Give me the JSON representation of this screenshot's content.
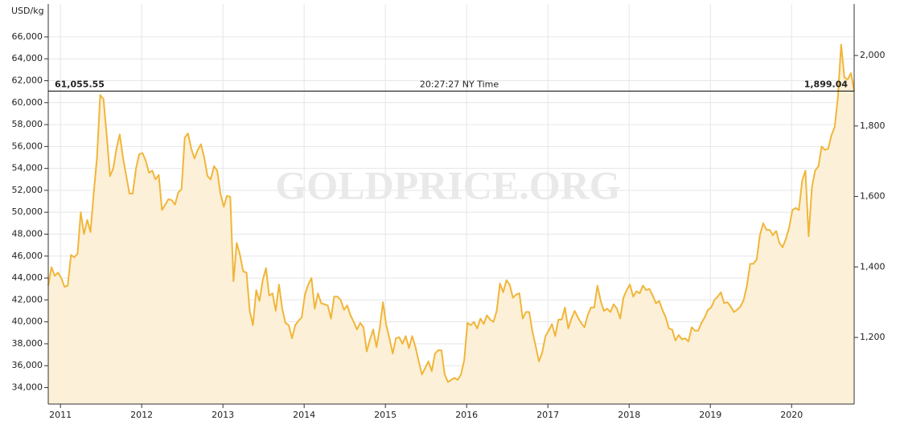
{
  "chart_data": {
    "type": "line",
    "y_label": "USD/kg",
    "watermark": "GOLDPRICE.ORG",
    "color": "#f0b63a",
    "fill": "#fdf0d8",
    "xlim": [
      2010.85,
      2020.77
    ],
    "xticks": [
      2011,
      2012,
      2013,
      2014,
      2015,
      2016,
      2017,
      2018,
      2019,
      2020
    ],
    "ylim": [
      32500,
      69000
    ],
    "yticks": [
      {
        "value": 34000,
        "label": "34,000"
      },
      {
        "value": 36000,
        "label": "36,000"
      },
      {
        "value": 38000,
        "label": "38,000"
      },
      {
        "value": 40000,
        "label": "40,000"
      },
      {
        "value": 42000,
        "label": "42,000"
      },
      {
        "value": 44000,
        "label": "44,000"
      },
      {
        "value": 46000,
        "label": "46,000"
      },
      {
        "value": 48000,
        "label": "48,000"
      },
      {
        "value": 50000,
        "label": "50,000"
      },
      {
        "value": 52000,
        "label": "52,000"
      },
      {
        "value": 54000,
        "label": "54,000"
      },
      {
        "value": 56000,
        "label": "56,000"
      },
      {
        "value": 58000,
        "label": "58,000"
      },
      {
        "value": 60000,
        "label": "60,000"
      },
      {
        "value": 62000,
        "label": "62,000"
      },
      {
        "value": 64000,
        "label": "64,000"
      },
      {
        "value": 66000,
        "label": "66,000"
      }
    ],
    "y2lim": [
      1011,
      2146
    ],
    "y2ticks": [
      {
        "value": 1200,
        "label": "1,200"
      },
      {
        "value": 1400,
        "label": "1,400"
      },
      {
        "value": 1600,
        "label": "1,600"
      },
      {
        "value": 1800,
        "label": "1,800"
      },
      {
        "value": 2000,
        "label": "2,000"
      }
    ],
    "grid": true,
    "crosshair": {
      "value": 61055.55,
      "label": "61,055.55",
      "time": "20:27:27 NY Time",
      "value2": {
        "value": 1899.04,
        "label": "1,899.04"
      }
    },
    "x": [
      2010.85,
      2010.89,
      2010.93,
      2010.97,
      2011.01,
      2011.05,
      2011.09,
      2011.13,
      2011.17,
      2011.21,
      2011.25,
      2011.29,
      2011.33,
      2011.37,
      2011.41,
      2011.45,
      2011.49,
      2011.53,
      2011.57,
      2011.61,
      2011.65,
      2011.69,
      2011.73,
      2011.77,
      2011.81,
      2011.85,
      2011.89,
      2011.93,
      2011.97,
      2012.01,
      2012.05,
      2012.09,
      2012.13,
      2012.17,
      2012.21,
      2012.25,
      2012.29,
      2012.33,
      2012.37,
      2012.41,
      2012.45,
      2012.49,
      2012.53,
      2012.57,
      2012.61,
      2012.65,
      2012.69,
      2012.73,
      2012.77,
      2012.81,
      2012.85,
      2012.89,
      2012.93,
      2012.97,
      2013.01,
      2013.05,
      2013.09,
      2013.13,
      2013.17,
      2013.21,
      2013.25,
      2013.29,
      2013.33,
      2013.37,
      2013.41,
      2013.45,
      2013.49,
      2013.53,
      2013.57,
      2013.61,
      2013.65,
      2013.69,
      2013.73,
      2013.77,
      2013.81,
      2013.85,
      2013.89,
      2013.93,
      2013.97,
      2014.01,
      2014.05,
      2014.09,
      2014.13,
      2014.17,
      2014.21,
      2014.25,
      2014.29,
      2014.33,
      2014.37,
      2014.41,
      2014.45,
      2014.49,
      2014.53,
      2014.57,
      2014.61,
      2014.65,
      2014.69,
      2014.73,
      2014.77,
      2014.81,
      2014.85,
      2014.89,
      2014.93,
      2014.97,
      2015.01,
      2015.05,
      2015.09,
      2015.13,
      2015.17,
      2015.21,
      2015.25,
      2015.29,
      2015.33,
      2015.37,
      2015.41,
      2015.45,
      2015.49,
      2015.53,
      2015.57,
      2015.61,
      2015.65,
      2015.69,
      2015.73,
      2015.77,
      2015.81,
      2015.85,
      2015.89,
      2015.93,
      2015.97,
      2016.01,
      2016.05,
      2016.09,
      2016.13,
      2016.17,
      2016.21,
      2016.25,
      2016.29,
      2016.33,
      2016.37,
      2016.41,
      2016.45,
      2016.49,
      2016.53,
      2016.57,
      2016.61,
      2016.65,
      2016.69,
      2016.73,
      2016.77,
      2016.81,
      2016.85,
      2016.89,
      2016.93,
      2016.97,
      2017.01,
      2017.05,
      2017.09,
      2017.13,
      2017.17,
      2017.21,
      2017.25,
      2017.29,
      2017.33,
      2017.37,
      2017.41,
      2017.45,
      2017.49,
      2017.53,
      2017.57,
      2017.61,
      2017.65,
      2017.69,
      2017.73,
      2017.77,
      2017.81,
      2017.85,
      2017.89,
      2017.93,
      2017.97,
      2018.01,
      2018.05,
      2018.09,
      2018.13,
      2018.17,
      2018.21,
      2018.25,
      2018.29,
      2018.33,
      2018.37,
      2018.41,
      2018.45,
      2018.49,
      2018.53,
      2018.57,
      2018.61,
      2018.65,
      2018.69,
      2018.73,
      2018.77,
      2018.81,
      2018.85,
      2018.89,
      2018.93,
      2018.97,
      2019.01,
      2019.05,
      2019.09,
      2019.13,
      2019.17,
      2019.21,
      2019.25,
      2019.29,
      2019.33,
      2019.37,
      2019.41,
      2019.45,
      2019.49,
      2019.53,
      2019.57,
      2019.61,
      2019.65,
      2019.69,
      2019.73,
      2019.77,
      2019.81,
      2019.85,
      2019.89,
      2019.93,
      2019.97,
      2020.01,
      2020.05,
      2020.09,
      2020.13,
      2020.17,
      2020.21,
      2020.25,
      2020.29,
      2020.33,
      2020.37,
      2020.41,
      2020.45,
      2020.49,
      2020.53,
      2020.57,
      2020.61,
      2020.65,
      2020.69,
      2020.73,
      2020.77
    ],
    "values": [
      43300,
      45000,
      44200,
      44500,
      44000,
      43200,
      43300,
      46100,
      45900,
      46200,
      50000,
      48000,
      49300,
      48200,
      51800,
      55000,
      60700,
      60300,
      57000,
      53300,
      54000,
      55800,
      57100,
      55000,
      53300,
      51700,
      51700,
      54000,
      55300,
      55400,
      54700,
      53600,
      53800,
      53000,
      53400,
      50200,
      50700,
      51200,
      51100,
      50700,
      51800,
      52100,
      56800,
      57200,
      55800,
      54900,
      55700,
      56200,
      55000,
      53300,
      53000,
      54200,
      53800,
      51700,
      50500,
      51500,
      51400,
      43700,
      47200,
      46100,
      44600,
      44500,
      41000,
      39700,
      42900,
      41900,
      43800,
      44900,
      42400,
      42600,
      41000,
      43400,
      41200,
      39900,
      39700,
      38500,
      39700,
      40100,
      40400,
      42500,
      43400,
      44000,
      41200,
      42600,
      41700,
      41600,
      41500,
      40300,
      42300,
      42300,
      42000,
      41100,
      41500,
      40600,
      40000,
      39300,
      39900,
      39500,
      37300,
      38400,
      39300,
      37700,
      39400,
      41800,
      39700,
      38500,
      37100,
      38500,
      38600,
      38000,
      38700,
      37600,
      38700,
      37700,
      36400,
      35200,
      35800,
      36400,
      35500,
      37100,
      37400,
      37400,
      35200,
      34500,
      34700,
      34900,
      34700,
      35200,
      36500,
      39900,
      39700,
      40000,
      39400,
      40300,
      39800,
      40600,
      40200,
      40000,
      41000,
      43500,
      42700,
      43800,
      43400,
      42200,
      42500,
      42600,
      40300,
      40900,
      40900,
      39100,
      37800,
      36400,
      37200,
      38700,
      39200,
      39800,
      38700,
      40200,
      40200,
      41300,
      39400,
      40300,
      41000,
      40400,
      39900,
      39500,
      40600,
      41300,
      41300,
      43300,
      41900,
      41000,
      41200,
      40900,
      41600,
      41200,
      40300,
      42200,
      42900,
      43400,
      42300,
      42800,
      42600,
      43300,
      42900,
      43000,
      42400,
      41700,
      41900,
      41100,
      40400,
      39400,
      39300,
      38300,
      38800,
      38400,
      38500,
      38200,
      39500,
      39200,
      39200,
      39900,
      40400,
      41100,
      41300,
      42000,
      42300,
      42700,
      41700,
      41800,
      41400,
      40900,
      41100,
      41400,
      42000,
      43300,
      45300,
      45300,
      45700,
      47900,
      49000,
      48400,
      48400,
      47900,
      48300,
      47200,
      46800,
      47600,
      48600,
      50200,
      50400,
      50200,
      52900,
      53800,
      47800,
      52300,
      53800,
      54200,
      56000,
      55700,
      55800,
      57000,
      57800,
      60500,
      65300,
      62300,
      62100,
      62700,
      61100
    ]
  }
}
